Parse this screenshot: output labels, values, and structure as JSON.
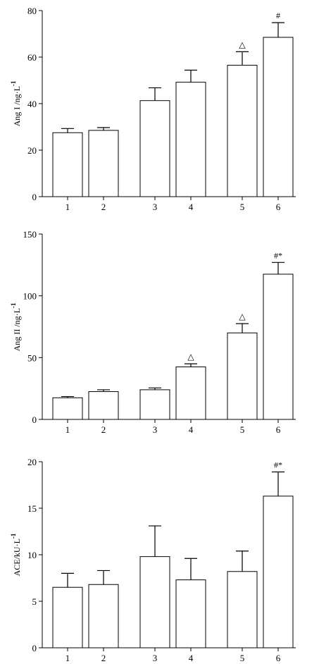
{
  "chart_data": [
    {
      "type": "bar",
      "ylabel": "Ang  I /ng·L",
      "ylabel_sup": "-1",
      "categories": [
        "1",
        "2",
        "3",
        "4",
        "5",
        "6"
      ],
      "values": [
        27.5,
        28.5,
        41.3,
        49.2,
        56.5,
        68.5
      ],
      "errors": [
        1.8,
        1.2,
        5.5,
        5.2,
        5.8,
        6.3
      ],
      "annotations": [
        "",
        "",
        "",
        "",
        "△",
        "#"
      ],
      "ylim": [
        0,
        80
      ],
      "yticks": [
        "0",
        "20",
        "40",
        "60",
        "80"
      ],
      "bar_color": "#ffffff",
      "line_color": "#000000"
    },
    {
      "type": "bar",
      "ylabel": "Ang II /ng·L",
      "ylabel_sup": "-1",
      "categories": [
        "1",
        "2",
        "3",
        "4",
        "5",
        "6"
      ],
      "values": [
        17.5,
        22.5,
        24.0,
        42.5,
        70.0,
        117.5
      ],
      "errors": [
        1.0,
        1.5,
        1.5,
        2.5,
        7.5,
        9.5
      ],
      "annotations": [
        "",
        "",
        "",
        "△",
        "△",
        "#*"
      ],
      "ylim": [
        0,
        150
      ],
      "yticks": [
        "0",
        "50",
        "100",
        "150"
      ],
      "bar_color": "#ffffff",
      "line_color": "#000000"
    },
    {
      "type": "bar",
      "ylabel": "ACE/kU·L",
      "ylabel_sup": "-1",
      "categories": [
        "1",
        "2",
        "3",
        "4",
        "5",
        "6"
      ],
      "values": [
        6.5,
        6.8,
        9.8,
        7.3,
        8.2,
        16.3
      ],
      "errors": [
        1.5,
        1.5,
        3.3,
        2.3,
        2.2,
        2.6
      ],
      "annotations": [
        "",
        "",
        "",
        "",
        "",
        "#*"
      ],
      "ylim": [
        0,
        20
      ],
      "yticks": [
        "0",
        "5",
        "10",
        "15",
        "20"
      ],
      "bar_color": "#ffffff",
      "line_color": "#000000"
    }
  ]
}
